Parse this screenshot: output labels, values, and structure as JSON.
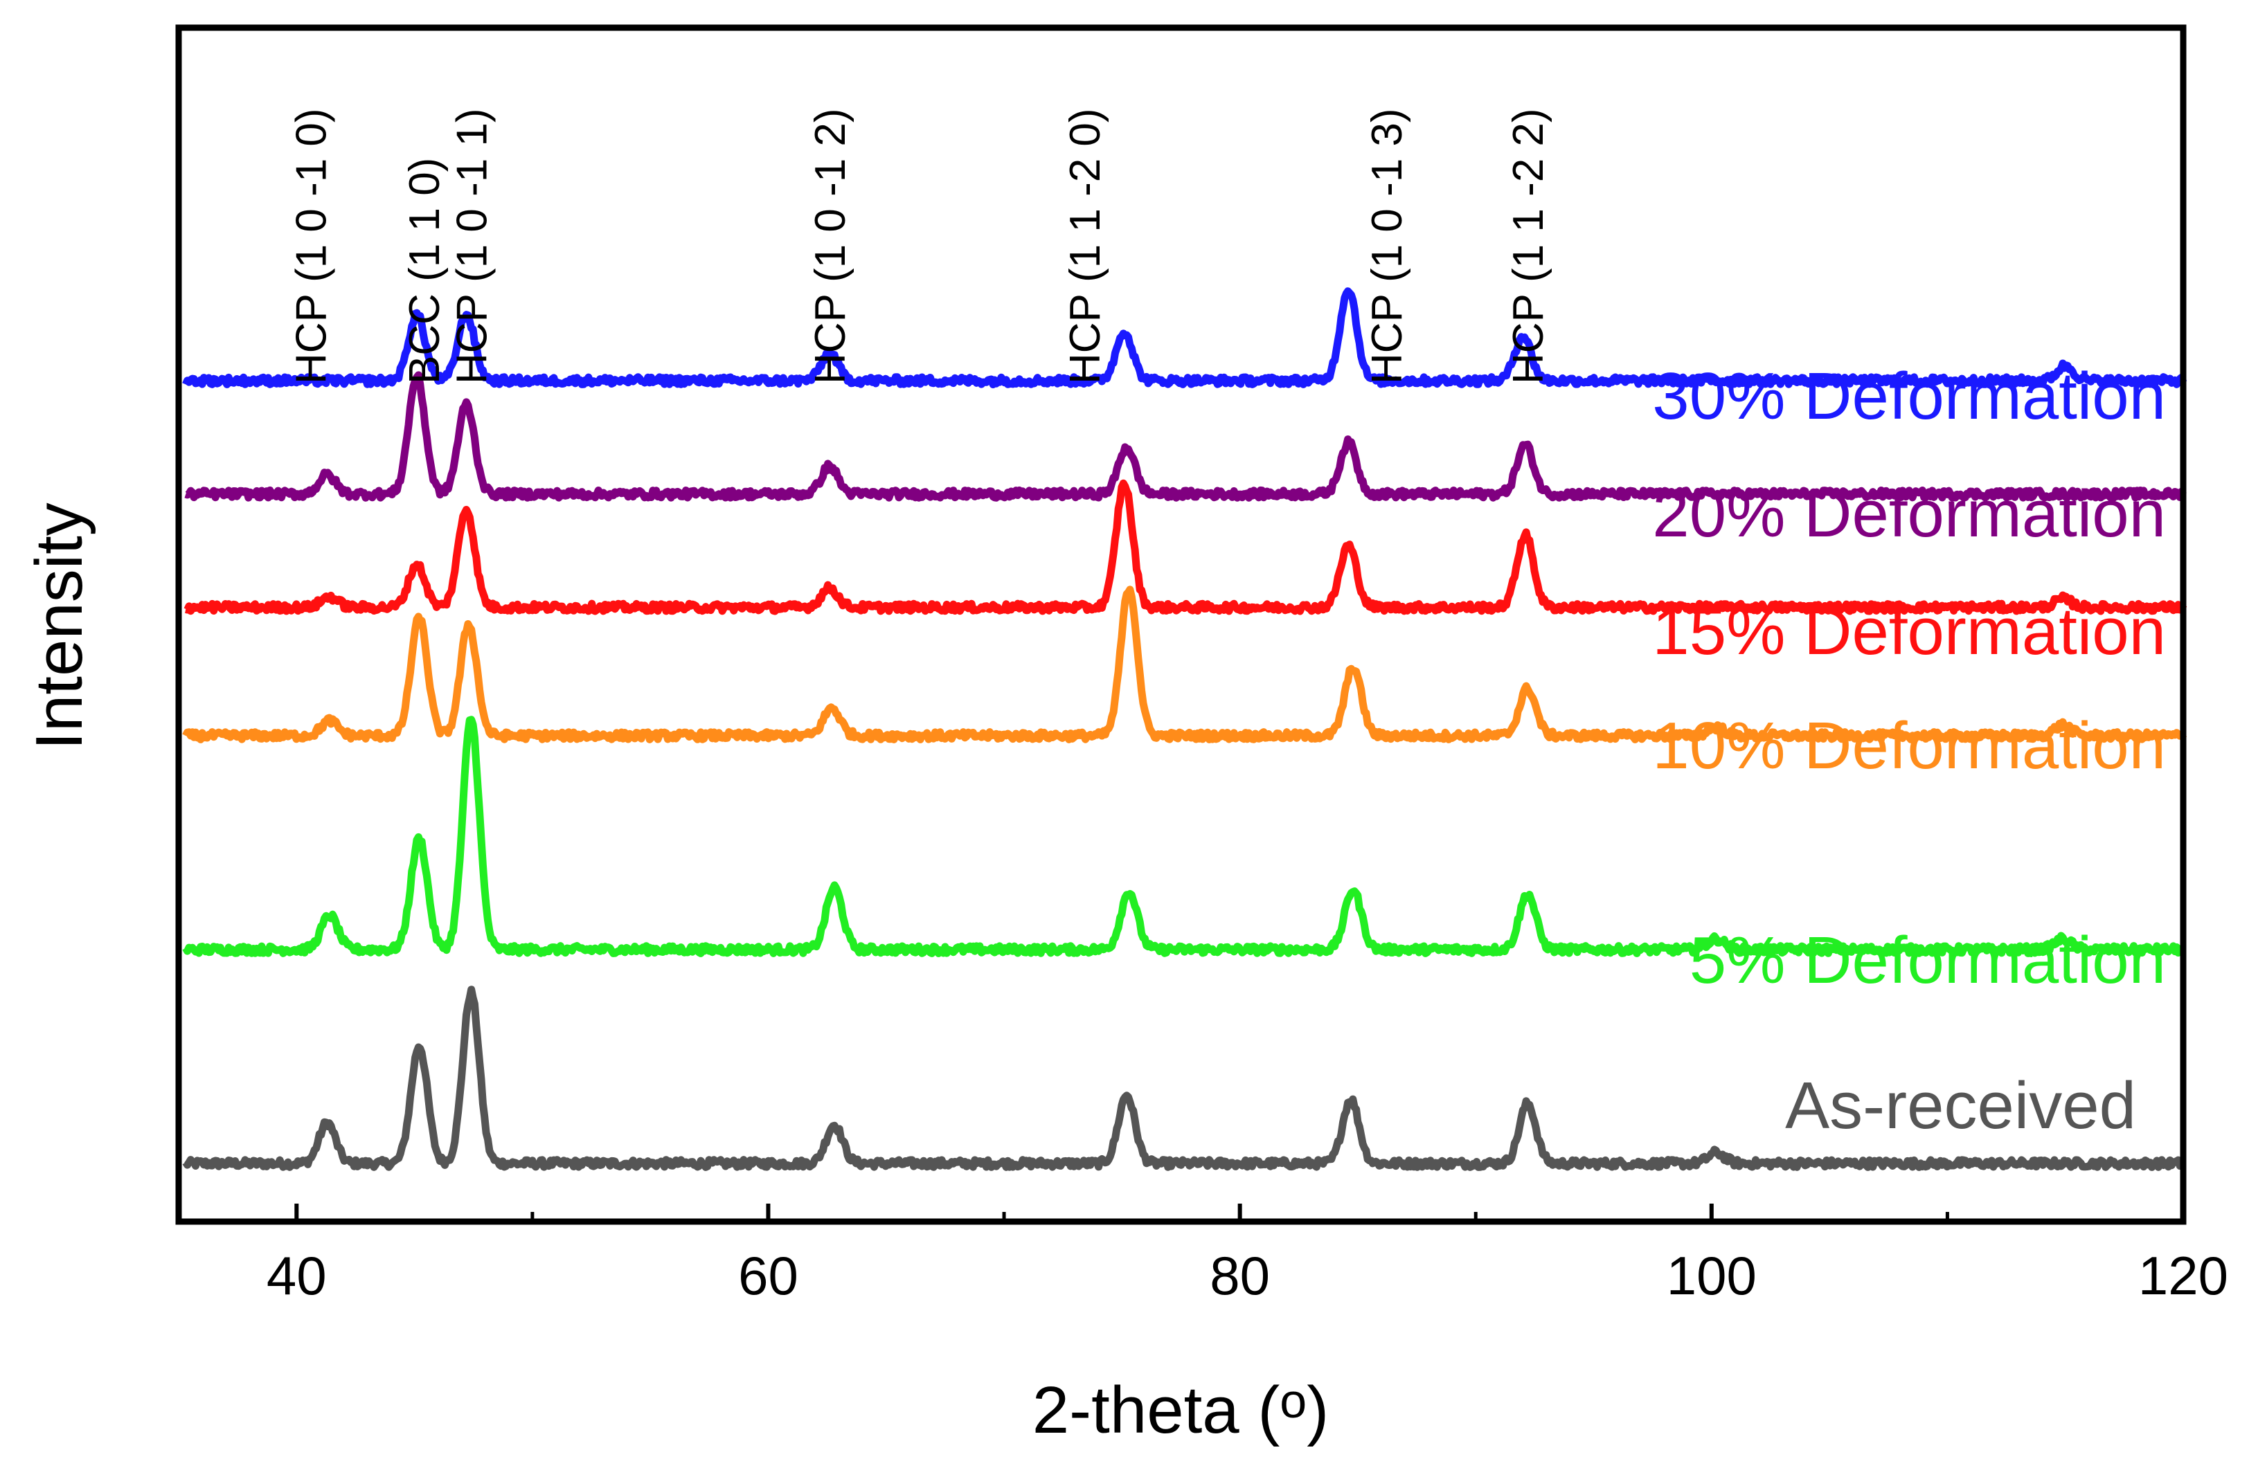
{
  "chart_data": {
    "type": "line",
    "title": "",
    "xlabel": "2-theta (o)",
    "ylabel": "Intensity",
    "xlim": [
      35,
      120
    ],
    "x_ticks": [
      40,
      60,
      80,
      100,
      120
    ],
    "x_minor_ticks": [
      50,
      70,
      90,
      110
    ],
    "y_ticks_shown": false,
    "grid": false,
    "legend": "inline-right",
    "peak_labels": [
      {
        "text": "HCP (1 0 -1 0)",
        "x": 40.6
      },
      {
        "text": "BCC (1 1 0)",
        "x": 45.4
      },
      {
        "text": "HCP (1 0 -1 1)",
        "x": 47.4
      },
      {
        "text": "HCP (1 0 -1 2)",
        "x": 62.6
      },
      {
        "text": "HCP (1 1 -2 0)",
        "x": 73.4
      },
      {
        "text": "HCP (1 0 -1 3)",
        "x": 86.2
      },
      {
        "text": "HCP (1 1 -2 2)",
        "x": 92.2
      }
    ],
    "series": [
      {
        "name": "As-received",
        "color": "#555555",
        "baseline": 0.0,
        "peaks": [
          [
            41.3,
            0.19
          ],
          [
            45.2,
            0.55
          ],
          [
            47.4,
            0.8
          ],
          [
            62.8,
            0.18
          ],
          [
            75.2,
            0.32
          ],
          [
            84.7,
            0.3
          ],
          [
            92.2,
            0.28
          ],
          [
            100.2,
            0.05
          ]
        ]
      },
      {
        "name": "5% Deformation",
        "color": "#22ee22",
        "baseline": 1.0,
        "peaks": [
          [
            41.4,
            0.16
          ],
          [
            45.2,
            0.52
          ],
          [
            47.4,
            1.08
          ],
          [
            62.8,
            0.29
          ],
          [
            75.3,
            0.27
          ],
          [
            84.8,
            0.28
          ],
          [
            92.2,
            0.26
          ],
          [
            100.2,
            0.05
          ],
          [
            114.9,
            0.05
          ]
        ]
      },
      {
        "name": "10% Deformation",
        "color": "#ff8c1a",
        "baseline": 2.0,
        "peaks": [
          [
            41.4,
            0.07
          ],
          [
            45.2,
            0.55
          ],
          [
            47.3,
            0.52
          ],
          [
            62.7,
            0.13
          ],
          [
            75.3,
            0.69
          ],
          [
            84.8,
            0.32
          ],
          [
            92.2,
            0.22
          ],
          [
            100.2,
            0.04
          ],
          [
            114.9,
            0.05
          ]
        ]
      },
      {
        "name": "15% Deformation",
        "color": "#ff1010",
        "baseline": 2.6,
        "peaks": [
          [
            41.4,
            0.05
          ],
          [
            45.1,
            0.2
          ],
          [
            47.2,
            0.46
          ],
          [
            62.6,
            0.09
          ],
          [
            75.1,
            0.58
          ],
          [
            84.6,
            0.29
          ],
          [
            92.1,
            0.34
          ],
          [
            114.9,
            0.04
          ]
        ]
      },
      {
        "name": "20% Deformation",
        "color": "#800080",
        "baseline": 3.13,
        "peaks": [
          [
            41.3,
            0.09
          ],
          [
            45.1,
            0.55
          ],
          [
            47.2,
            0.42
          ],
          [
            62.6,
            0.13
          ],
          [
            75.2,
            0.22
          ],
          [
            84.6,
            0.24
          ],
          [
            92.1,
            0.23
          ]
        ]
      },
      {
        "name": "30% Deformation",
        "color": "#1a1aff",
        "baseline": 3.66,
        "peaks": [
          [
            45.1,
            0.31
          ],
          [
            47.2,
            0.31
          ],
          [
            62.6,
            0.13
          ],
          [
            75.1,
            0.23
          ],
          [
            84.6,
            0.43
          ],
          [
            92.0,
            0.21
          ],
          [
            115.0,
            0.07
          ]
        ]
      }
    ]
  }
}
